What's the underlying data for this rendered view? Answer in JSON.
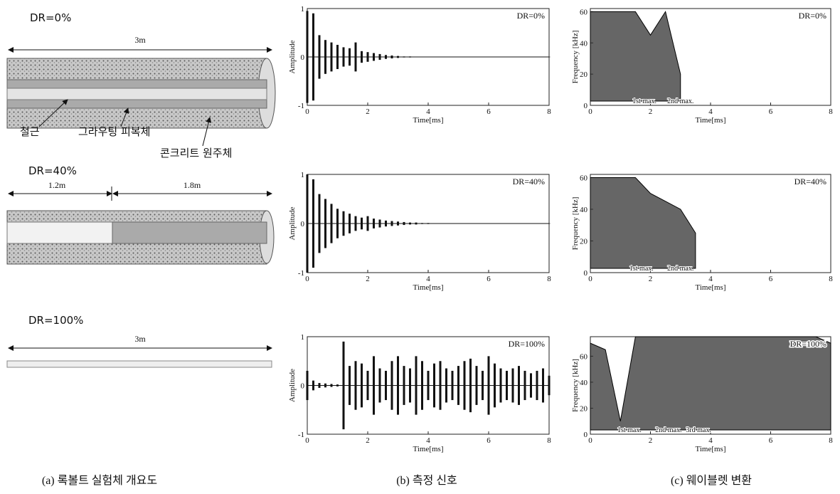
{
  "diagram": {
    "rows": [
      {
        "label": "DR=0%",
        "dims": [
          "3m"
        ]
      },
      {
        "label": "DR=40%",
        "dims": [
          "1.2m",
          "1.8m"
        ]
      },
      {
        "label": "DR=100%",
        "dims": [
          "3m"
        ]
      }
    ],
    "parts": [
      "철근",
      "그라우팅 피복체",
      "콘크리트 원주체"
    ]
  },
  "captions": [
    "(a) 록볼트 실험체 개요도",
    "(b) 측정 신호",
    "(c) 웨이블렛 변환"
  ],
  "chart_data": [
    {
      "type": "signal",
      "title": "DR=0%",
      "x_label": "Time[ms]",
      "y_label": "Amplitude",
      "x": [
        0,
        0.2,
        0.4,
        0.6,
        0.8,
        1,
        1.2,
        1.4,
        1.6,
        1.8,
        2,
        2.2,
        2.4,
        2.6,
        2.8,
        3,
        3.2,
        3.4,
        3.6,
        3.8,
        4,
        4.2,
        4.4,
        4.6,
        4.8,
        5,
        5.2,
        5.4,
        5.6,
        5.8,
        6,
        6.2,
        6.4,
        6.6,
        6.8,
        7,
        7.2,
        7.4,
        7.6,
        7.8,
        8
      ],
      "values": [
        0.95,
        0.9,
        0.45,
        0.35,
        0.3,
        0.25,
        0.2,
        0.18,
        0.3,
        0.12,
        0.1,
        0.08,
        0.06,
        0.04,
        0.03,
        0.02,
        0.01,
        0.01,
        0.005,
        0.005,
        0.005,
        0.005,
        0.005,
        0.005,
        0.005,
        0.005,
        0.005,
        0.005,
        0.005,
        0.005,
        0.005,
        0.005,
        0.005,
        0.005,
        0.005,
        0.005,
        0.005,
        0.005,
        0.005,
        0.005,
        0.005
      ],
      "xlim": [
        0,
        8
      ],
      "xticks": [
        0,
        2,
        4,
        6,
        8
      ],
      "ylim": [
        -1,
        1
      ],
      "yticks": [
        -1,
        0,
        1
      ]
    },
    {
      "type": "wavelet",
      "title": "DR=0%",
      "x_label": "Time[ms]",
      "y_label": "Frequency [kHz]",
      "x": [
        0,
        0.5,
        1,
        1.5,
        2,
        2.5,
        3,
        3.5,
        4,
        4.5,
        5,
        5.5,
        6,
        6.5,
        7,
        7.5,
        8
      ],
      "values": [
        60,
        60,
        60,
        60,
        45,
        60,
        20,
        null,
        null,
        null,
        null,
        null,
        null,
        null,
        null,
        null,
        null
      ],
      "annotations": [
        {
          "text": "1st max.",
          "x": 1.8
        },
        {
          "text": "2nd max.",
          "x": 3.0
        }
      ],
      "xlim": [
        0,
        8
      ],
      "xticks": [
        0,
        2,
        4,
        6,
        8
      ],
      "ylim": [
        0,
        62
      ],
      "yticks": [
        0,
        20,
        40,
        60
      ]
    },
    {
      "type": "signal",
      "title": "DR=40%",
      "x_label": "Time[ms]",
      "y_label": "Amplitude",
      "x": [
        0,
        0.2,
        0.4,
        0.6,
        0.8,
        1,
        1.2,
        1.4,
        1.6,
        1.8,
        2,
        2.2,
        2.4,
        2.6,
        2.8,
        3,
        3.2,
        3.4,
        3.6,
        3.8,
        4,
        4.2,
        4.4,
        4.6,
        4.8,
        5,
        5.2,
        5.4,
        5.6,
        5.8,
        6,
        6.2,
        6.4,
        6.6,
        6.8,
        7,
        7.2,
        7.4,
        7.6,
        7.8,
        8
      ],
      "values": [
        1,
        0.9,
        0.6,
        0.5,
        0.4,
        0.3,
        0.25,
        0.2,
        0.15,
        0.12,
        0.15,
        0.1,
        0.08,
        0.06,
        0.05,
        0.04,
        0.03,
        0.02,
        0.02,
        0.01,
        0.01,
        0.005,
        0.005,
        0.005,
        0.005,
        0.005,
        0.005,
        0.005,
        0.005,
        0.005,
        0.005,
        0.005,
        0.005,
        0.005,
        0.005,
        0.005,
        0.005,
        0.005,
        0.005,
        0.005,
        0.005
      ],
      "xlim": [
        0,
        8
      ],
      "xticks": [
        0,
        2,
        4,
        6,
        8
      ],
      "ylim": [
        -1,
        1
      ],
      "yticks": [
        -1,
        0,
        1
      ]
    },
    {
      "type": "wavelet",
      "title": "DR=40%",
      "x_label": "Time[ms]",
      "y_label": "Frequency [kHz]",
      "x": [
        0,
        0.5,
        1,
        1.5,
        2,
        2.5,
        3,
        3.5,
        4,
        4.5,
        5,
        5.5,
        6,
        6.5,
        7,
        7.5,
        8
      ],
      "values": [
        60,
        60,
        60,
        60,
        50,
        45,
        40,
        25,
        null,
        null,
        null,
        null,
        null,
        null,
        null,
        null,
        null
      ],
      "annotations": [
        {
          "text": "1st max.",
          "x": 1.7
        },
        {
          "text": "2nd max.",
          "x": 3.0
        }
      ],
      "xlim": [
        0,
        8
      ],
      "xticks": [
        0,
        2,
        4,
        6,
        8
      ],
      "ylim": [
        0,
        62
      ],
      "yticks": [
        0,
        20,
        40,
        60
      ]
    },
    {
      "type": "signal",
      "title": "DR=100%",
      "x_label": "Time[ms]",
      "y_label": "Amplitude",
      "x": [
        0,
        0.2,
        0.4,
        0.6,
        0.8,
        1,
        1.2,
        1.4,
        1.6,
        1.8,
        2,
        2.2,
        2.4,
        2.6,
        2.8,
        3,
        3.2,
        3.4,
        3.6,
        3.8,
        4,
        4.2,
        4.4,
        4.6,
        4.8,
        5,
        5.2,
        5.4,
        5.6,
        5.8,
        6,
        6.2,
        6.4,
        6.6,
        6.8,
        7,
        7.2,
        7.4,
        7.6,
        7.8,
        8
      ],
      "values": [
        0.3,
        0.1,
        0.05,
        0.04,
        0.03,
        0.02,
        0.9,
        0.4,
        0.5,
        0.45,
        0.3,
        0.6,
        0.35,
        0.3,
        0.5,
        0.6,
        0.4,
        0.35,
        0.6,
        0.5,
        0.3,
        0.45,
        0.5,
        0.35,
        0.3,
        0.4,
        0.5,
        0.55,
        0.4,
        0.3,
        0.6,
        0.45,
        0.35,
        0.3,
        0.35,
        0.4,
        0.3,
        0.25,
        0.3,
        0.35,
        0.2
      ],
      "xlim": [
        0,
        8
      ],
      "xticks": [
        0,
        2,
        4,
        6,
        8
      ],
      "ylim": [
        -1,
        1
      ],
      "yticks": [
        -1,
        0,
        1
      ]
    },
    {
      "type": "wavelet",
      "title": "DR=100%",
      "x_label": "Time[ms]",
      "y_label": "Frequency [kHz]",
      "x": [
        0,
        0.5,
        1,
        1.5,
        2,
        2.5,
        3,
        3.5,
        4,
        4.5,
        5,
        5.5,
        6,
        6.5,
        7,
        7.5,
        8
      ],
      "values": [
        70,
        65,
        10,
        75,
        75,
        75,
        75,
        75,
        75,
        75,
        75,
        75,
        75,
        75,
        75,
        75,
        70
      ],
      "annotations": [
        {
          "text": "1st max.",
          "x": 1.3
        },
        {
          "text": "2nd max.",
          "x": 2.6
        },
        {
          "text": "3rd max.",
          "x": 3.6
        }
      ],
      "xlim": [
        0,
        8
      ],
      "xticks": [
        0,
        2,
        4,
        6,
        8
      ],
      "ylim": [
        0,
        75
      ],
      "yticks": [
        0,
        20,
        40,
        60
      ]
    }
  ]
}
